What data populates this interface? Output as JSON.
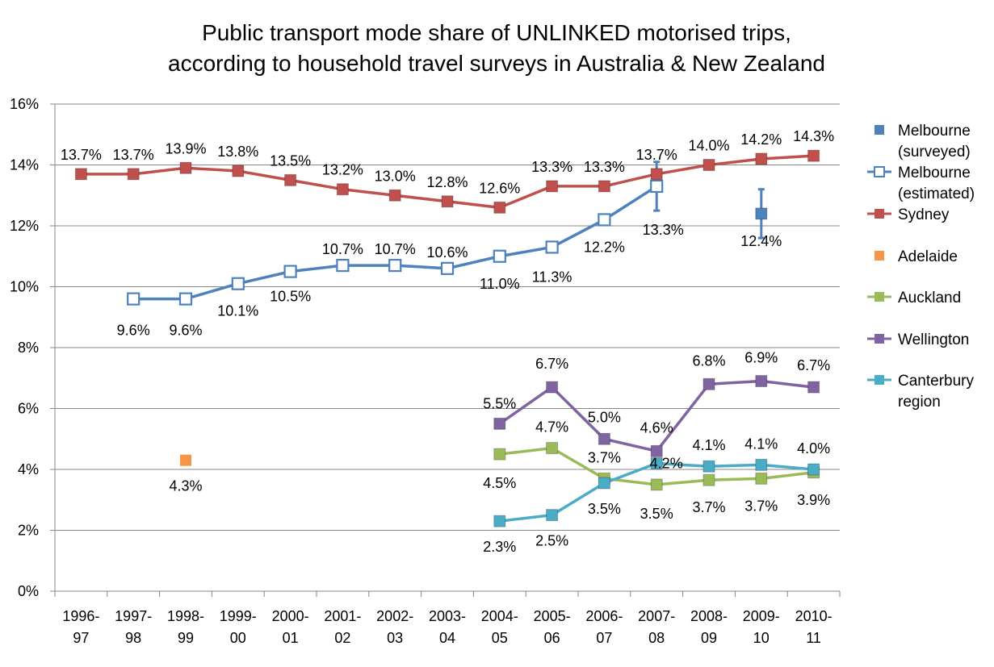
{
  "chart_data": {
    "type": "line",
    "title": [
      "Public transport mode share of UNLINKED motorised trips,",
      "according to household travel surveys in Australia & New Zealand"
    ],
    "xlabel": "",
    "ylabel": "",
    "ylim": [
      0,
      16
    ],
    "yticks": [
      "0%",
      "2%",
      "4%",
      "6%",
      "8%",
      "10%",
      "12%",
      "14%",
      "16%"
    ],
    "grid": true,
    "legend_position": "right",
    "categories": [
      [
        "1996-",
        "97"
      ],
      [
        "1997-",
        "98"
      ],
      [
        "1998-",
        "99"
      ],
      [
        "1999-",
        "00"
      ],
      [
        "2000-",
        "01"
      ],
      [
        "2001-",
        "02"
      ],
      [
        "2002-",
        "03"
      ],
      [
        "2003-",
        "04"
      ],
      [
        "2004-",
        "05"
      ],
      [
        "2005-",
        "06"
      ],
      [
        "2006-",
        "07"
      ],
      [
        "2007-",
        "08"
      ],
      [
        "2008-",
        "09"
      ],
      [
        "2009-",
        "10"
      ],
      [
        "2010-",
        "11"
      ]
    ],
    "series": [
      {
        "name": [
          "Melbourne",
          "(surveyed)"
        ],
        "color": "#4F81BD",
        "marker": "square-filled",
        "line": false,
        "values": [
          null,
          9.6,
          9.6,
          10.1,
          10.5,
          null,
          null,
          null,
          null,
          null,
          null,
          13.3,
          null,
          12.4,
          null
        ],
        "labels": [
          null,
          "9.6%",
          "9.6%",
          "10.1%",
          "10.5%",
          null,
          null,
          null,
          null,
          null,
          null,
          "13.3%",
          null,
          "12.4%",
          null
        ],
        "error": [
          null,
          null,
          null,
          null,
          null,
          null,
          null,
          null,
          null,
          null,
          null,
          [
            12.5,
            14.1
          ],
          null,
          [
            11.6,
            13.2
          ],
          null
        ]
      },
      {
        "name": [
          "Melbourne",
          "(estimated)"
        ],
        "color": "#4F81BD",
        "marker": "square-hollow",
        "line": true,
        "values": [
          null,
          9.6,
          9.6,
          10.1,
          10.5,
          10.7,
          10.7,
          10.6,
          11.0,
          11.3,
          12.2,
          13.3,
          null,
          null,
          null
        ],
        "labels": [
          null,
          null,
          null,
          null,
          null,
          "10.7%",
          "10.7%",
          "10.6%",
          "11.0%",
          "11.3%",
          "12.2%",
          null,
          null,
          null,
          null
        ]
      },
      {
        "name": [
          "Sydney"
        ],
        "color": "#C0504D",
        "marker": "square-filled",
        "line": true,
        "values": [
          13.7,
          13.7,
          13.9,
          13.8,
          13.5,
          13.2,
          13.0,
          12.8,
          12.6,
          13.3,
          13.3,
          13.7,
          14.0,
          14.2,
          14.3
        ],
        "labels": [
          "13.7%",
          "13.7%",
          "13.9%",
          "13.8%",
          "13.5%",
          "13.2%",
          "13.0%",
          "12.8%",
          "12.6%",
          "13.3%",
          "13.3%",
          "13.7%",
          "14.0%",
          "14.2%",
          "14.3%"
        ]
      },
      {
        "name": [
          "Adelaide"
        ],
        "color": "#F79646",
        "marker": "square-filled",
        "line": false,
        "values": [
          null,
          null,
          4.3,
          null,
          null,
          null,
          null,
          null,
          null,
          null,
          null,
          null,
          null,
          null,
          null
        ],
        "labels": [
          null,
          null,
          "4.3%",
          null,
          null,
          null,
          null,
          null,
          null,
          null,
          null,
          null,
          null,
          null,
          null
        ]
      },
      {
        "name": [
          "Auckland"
        ],
        "color": "#9BBB59",
        "marker": "square-filled",
        "line": true,
        "values": [
          null,
          null,
          null,
          null,
          null,
          null,
          null,
          null,
          4.5,
          4.7,
          3.7,
          3.5,
          3.65,
          3.7,
          3.9
        ],
        "labels": [
          null,
          null,
          null,
          null,
          null,
          null,
          null,
          null,
          "4.5%",
          "4.7%",
          "3.7%",
          "3.5%",
          "3.7%",
          "3.7%",
          "3.9%"
        ]
      },
      {
        "name": [
          "Wellington"
        ],
        "color": "#8064A2",
        "marker": "square-filled",
        "line": true,
        "values": [
          null,
          null,
          null,
          null,
          null,
          null,
          null,
          null,
          5.5,
          6.7,
          5.0,
          4.6,
          6.8,
          6.9,
          6.7
        ],
        "labels": [
          null,
          null,
          null,
          null,
          null,
          null,
          null,
          null,
          "5.5%",
          "6.7%",
          "5.0%",
          "4.6%",
          "6.8%",
          "6.9%",
          "6.7%"
        ]
      },
      {
        "name": [
          "Canterbury",
          "region"
        ],
        "color": "#4BACC6",
        "marker": "square-filled",
        "line": true,
        "values": [
          null,
          null,
          null,
          null,
          null,
          null,
          null,
          null,
          2.3,
          2.5,
          3.55,
          4.2,
          4.1,
          4.15,
          4.0
        ],
        "labels": [
          null,
          null,
          null,
          null,
          null,
          null,
          null,
          null,
          "2.3%",
          "2.5%",
          "3.5%",
          "4.2%",
          "4.1%",
          "4.1%",
          "4.0%"
        ]
      }
    ]
  }
}
